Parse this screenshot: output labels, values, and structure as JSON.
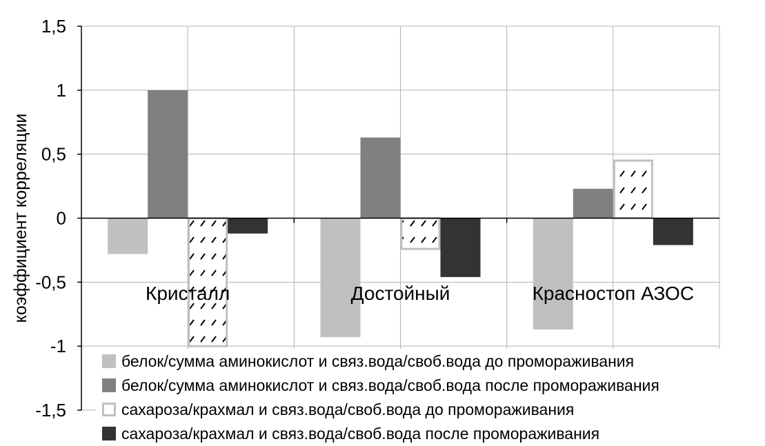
{
  "chart_data": {
    "type": "bar",
    "title": "",
    "xlabel": "",
    "ylabel": "коэффициент корреляции",
    "ylim": [
      -1.5,
      1.5
    ],
    "yticks": [
      1.5,
      1,
      0.5,
      0,
      -0.5,
      -1,
      -1.5
    ],
    "ytick_labels": [
      "1,5",
      "1",
      "0,5",
      "0",
      "-0,5",
      "-1",
      "-1,5"
    ],
    "grid": true,
    "legend_position": "bottom",
    "categories": [
      "Кристалл",
      "Достойный",
      "Красностоп АЗОС"
    ],
    "series": [
      {
        "name": "белок/сумма аминокислот и связ.вода/своб.вода до промораживания",
        "values": [
          -0.28,
          -0.93,
          -0.87
        ],
        "color": "#c0c0c0",
        "style": "solid"
      },
      {
        "name": "белок/сумма аминокислот и связ.вода/своб.вода после промораживания",
        "values": [
          1.0,
          0.63,
          0.23
        ],
        "color": "#808080",
        "style": "solid"
      },
      {
        "name": "сахароза/крахмал и связ.вода/своб.вода до промораживания",
        "values": [
          -1.0,
          -0.24,
          0.45
        ],
        "color": "#c0c0c0",
        "style": "hatched"
      },
      {
        "name": "сахароза/крахмал и связ.вода/своб.вода после промораживания",
        "values": [
          -0.12,
          -0.46,
          -0.21
        ],
        "color": "#333333",
        "style": "solid"
      }
    ]
  }
}
